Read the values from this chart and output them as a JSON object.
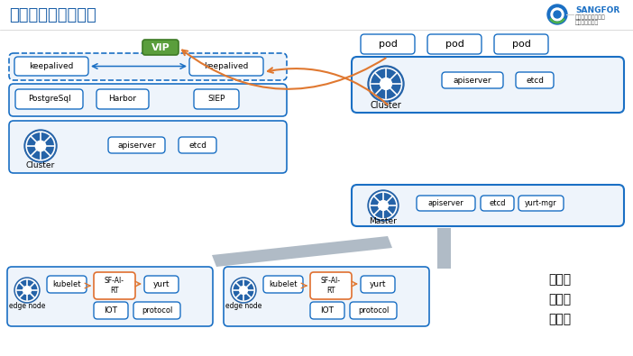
{
  "title": "深信服边缘计算架构",
  "bg_color": "#ffffff",
  "title_color": "#1a5fa8",
  "title_fontsize": 13,
  "sangfor_text": "SANGFOR",
  "sangfor_sub1": "让每个用户的数字化",
  "sangfor_sub2": "更简单、更安全",
  "vip_label": "VIP",
  "vip_color": "#5a9e3c",
  "keepalived_label": "keepalived",
  "postgresql_label": "PostgreSql",
  "harbor_label": "Harbor",
  "siep_label": "SIEP",
  "cluster_label": "Cluster",
  "apiserver_label": "apiserver",
  "etcd_label": "etcd",
  "master_label": "Master",
  "yurtmgr_label": "yurt-mgr",
  "kubelet_label": "kubelet",
  "sfai_label": "SF-AI-\nRT",
  "yurt_label": "yurt",
  "iot_label": "IOT",
  "protocol_label": "protocol",
  "edge_node_label": "edge node",
  "pod_label": "pod",
  "yunyuansheng": "云原生",
  "duojiqun": "多集群",
  "duozuhu": "多租户",
  "box_blue": "#1a6fc4",
  "box_bg": "#eef4fb",
  "arrow_orange": "#e07830",
  "arrow_blue": "#1a6fc4",
  "dashed_border": "#1a6fc4"
}
